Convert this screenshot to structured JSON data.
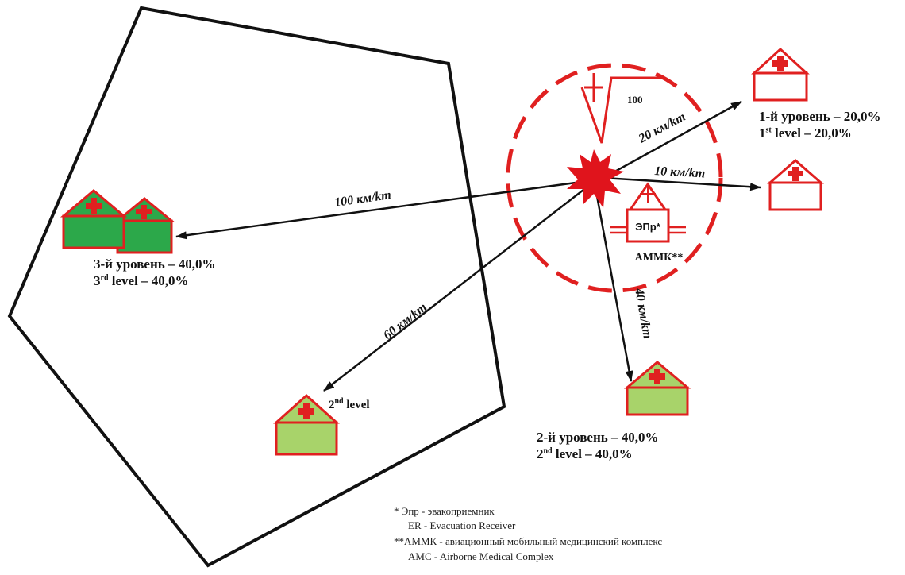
{
  "legend_colors": {
    "danger_zone": "#e02020",
    "level3_fill": "#2ca84a",
    "level2_fill": "#a8d36a",
    "level1_fill": "#ffffff",
    "facility_stroke": "#e02020",
    "arrow": "#111111"
  },
  "routes": {
    "level1": "20 км/km",
    "level1_alt": "10 км/km",
    "level3": "100 км/km",
    "level2_far": "60 км/km",
    "level2_near": "40 км/km"
  },
  "zone": {
    "dose_value": "100",
    "er_label": "ЭПр*",
    "amc_label": "АММК**"
  },
  "facilities": {
    "level1": {
      "ru": "1-й уровень – 20,0%",
      "en_prefix": "1",
      "en_sup": "st",
      "en_suffix": " level – 20,0%"
    },
    "level3": {
      "ru": "3-й уровень – 40,0%",
      "en_prefix": "3",
      "en_sup": "rd",
      "en_suffix": " level – 40,0%"
    },
    "level2": {
      "ru": "2-й уровень – 40,0%",
      "en_prefix": "2",
      "en_sup": "nd",
      "en_suffix": " level – 40,0%"
    },
    "level2_remote": {
      "en_prefix": "2",
      "en_sup": "nd",
      "en_suffix": " level"
    }
  },
  "notes": {
    "er_ru": "* Эпр - эвакоприемник",
    "er_en": "ER - Evacuation Receiver",
    "amc_ru": "**АММК - авиационный мобильный медицинский комплекс",
    "amc_en": "AMC - Airborne Medical Complex"
  }
}
